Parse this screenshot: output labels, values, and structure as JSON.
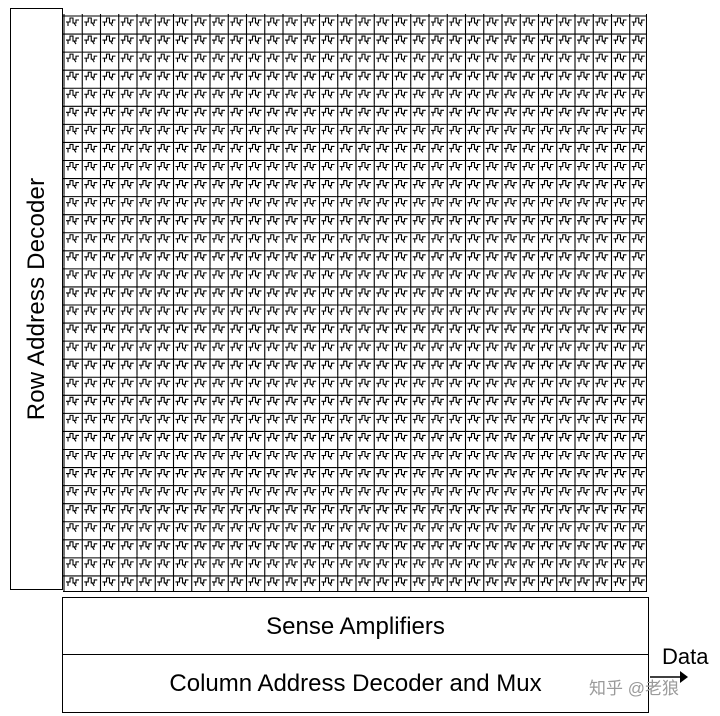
{
  "diagram": {
    "row_decoder_label": "Row Address Decoder",
    "sense_amplifiers_label": "Sense Amplifiers",
    "column_decoder_label": "Column Address Decoder and Mux",
    "data_label": "Data",
    "watermark": "知乎 @老狼"
  },
  "cell_array": {
    "rows": 32,
    "columns": 32
  }
}
